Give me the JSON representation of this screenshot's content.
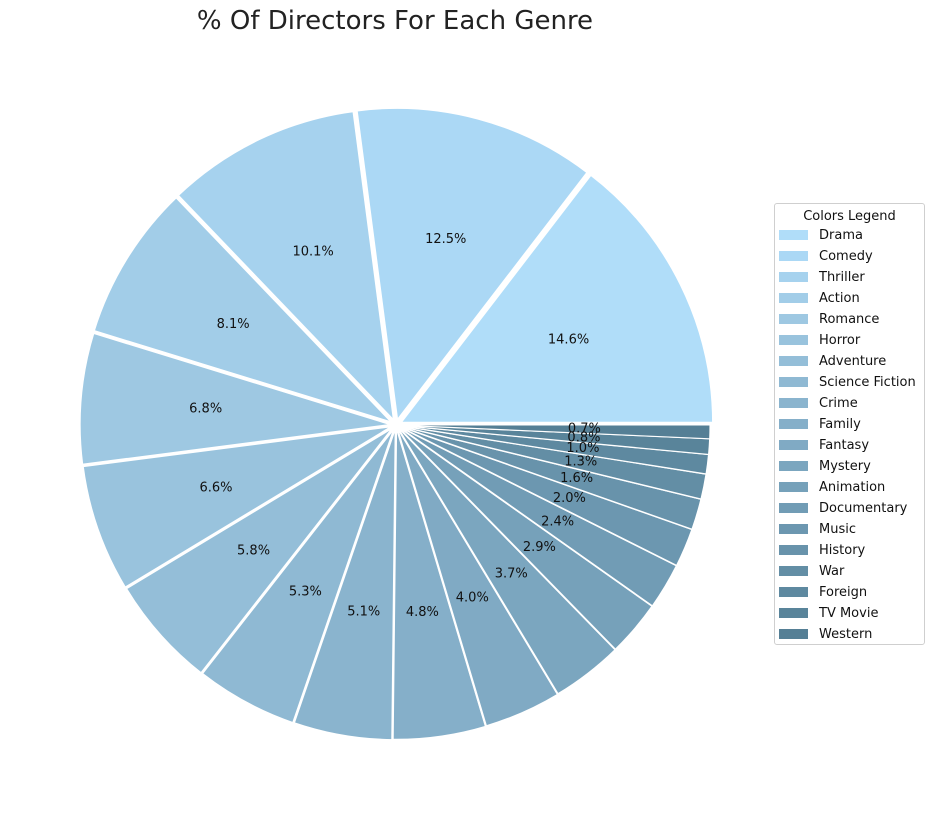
{
  "title": "% Of Directors For Each Genre",
  "chart_data": {
    "type": "pie",
    "title": "% Of Directors For Each Genre",
    "legend_title": "Colors Legend",
    "legend_placement": "right",
    "slices": [
      {
        "label": "Drama",
        "value": 14.6,
        "pct_label": "14.6%",
        "color": "#b0ddf9"
      },
      {
        "label": "Comedy",
        "value": 12.5,
        "pct_label": "12.5%",
        "color": "#abd8f5"
      },
      {
        "label": "Thriller",
        "value": 10.1,
        "pct_label": "10.1%",
        "color": "#a6d2ee"
      },
      {
        "label": "Action",
        "value": 8.1,
        "pct_label": "8.1%",
        "color": "#a2cde8"
      },
      {
        "label": "Romance",
        "value": 6.8,
        "pct_label": "6.8%",
        "color": "#9ec8e2"
      },
      {
        "label": "Horror",
        "value": 6.6,
        "pct_label": "6.6%",
        "color": "#99c3dd"
      },
      {
        "label": "Adventure",
        "value": 5.8,
        "pct_label": "5.8%",
        "color": "#94bed8"
      },
      {
        "label": "Science Fiction",
        "value": 5.3,
        "pct_label": "5.3%",
        "color": "#8fb9d3"
      },
      {
        "label": "Crime",
        "value": 5.1,
        "pct_label": "5.1%",
        "color": "#8ab4ce"
      },
      {
        "label": "Family",
        "value": 4.8,
        "pct_label": "4.8%",
        "color": "#85afc9"
      },
      {
        "label": "Fantasy",
        "value": 4.0,
        "pct_label": "4.0%",
        "color": "#80aac4"
      },
      {
        "label": "Mystery",
        "value": 3.7,
        "pct_label": "3.7%",
        "color": "#7ba6bf"
      },
      {
        "label": "Animation",
        "value": 2.9,
        "pct_label": "2.9%",
        "color": "#76a1ba"
      },
      {
        "label": "Documentary",
        "value": 2.4,
        "pct_label": "2.4%",
        "color": "#719cb5"
      },
      {
        "label": "Music",
        "value": 2.0,
        "pct_label": "2.0%",
        "color": "#6c97b0"
      },
      {
        "label": "History",
        "value": 1.6,
        "pct_label": "1.6%",
        "color": "#6893ab"
      },
      {
        "label": "War",
        "value": 1.3,
        "pct_label": "1.3%",
        "color": "#638ea5"
      },
      {
        "label": "Foreign",
        "value": 1.0,
        "pct_label": "1.0%",
        "color": "#5e89a0"
      },
      {
        "label": "TV Movie",
        "value": 0.8,
        "pct_label": "0.8%",
        "color": "#59849a"
      },
      {
        "label": "Western",
        "value": 0.7,
        "pct_label": "0.7%",
        "color": "#557f95"
      }
    ]
  }
}
